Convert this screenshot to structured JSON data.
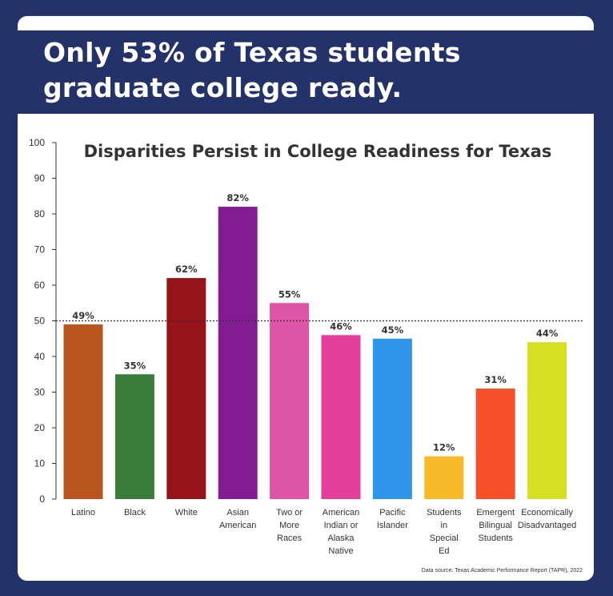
{
  "headline": "Only 53% of Texas students graduate college ready.",
  "colors": {
    "background": "#233268",
    "card": "#ffffff",
    "reference_line": "#333333"
  },
  "chart_data": {
    "type": "bar",
    "title": "Disparities Persist in College Readiness for Texas",
    "xlabel": "",
    "ylabel": "",
    "ylim": [
      0,
      100
    ],
    "yticks": [
      0,
      10,
      20,
      30,
      40,
      50,
      60,
      70,
      80,
      90,
      100
    ],
    "reference_line": 50,
    "categories": [
      [
        "Latino"
      ],
      [
        "Black"
      ],
      [
        "White"
      ],
      [
        "Asian",
        "American"
      ],
      [
        "Two or",
        "More",
        "Races"
      ],
      [
        "American",
        "Indian or",
        "Alaska",
        "Native"
      ],
      [
        "Pacific",
        "Islander"
      ],
      [
        "Students",
        "in",
        "Special",
        "Ed"
      ],
      [
        "Emergent",
        "Bilingual",
        "Students"
      ],
      [
        "Economically",
        "Disadvantaged"
      ]
    ],
    "values": [
      49,
      35,
      62,
      82,
      55,
      46,
      45,
      12,
      31,
      44
    ],
    "value_labels": [
      "49%",
      "35%",
      "62%",
      "82%",
      "55%",
      "46%",
      "45%",
      "12%",
      "31%",
      "44%"
    ],
    "bar_colors": [
      "#b9541f",
      "#3a7d3b",
      "#961419",
      "#831c92",
      "#df55a5",
      "#e43d9a",
      "#2f95e8",
      "#f6b928",
      "#f5502a",
      "#d7df21"
    ],
    "source": "Data source: Texas Academic Performance Report (TAPR), 2022"
  }
}
